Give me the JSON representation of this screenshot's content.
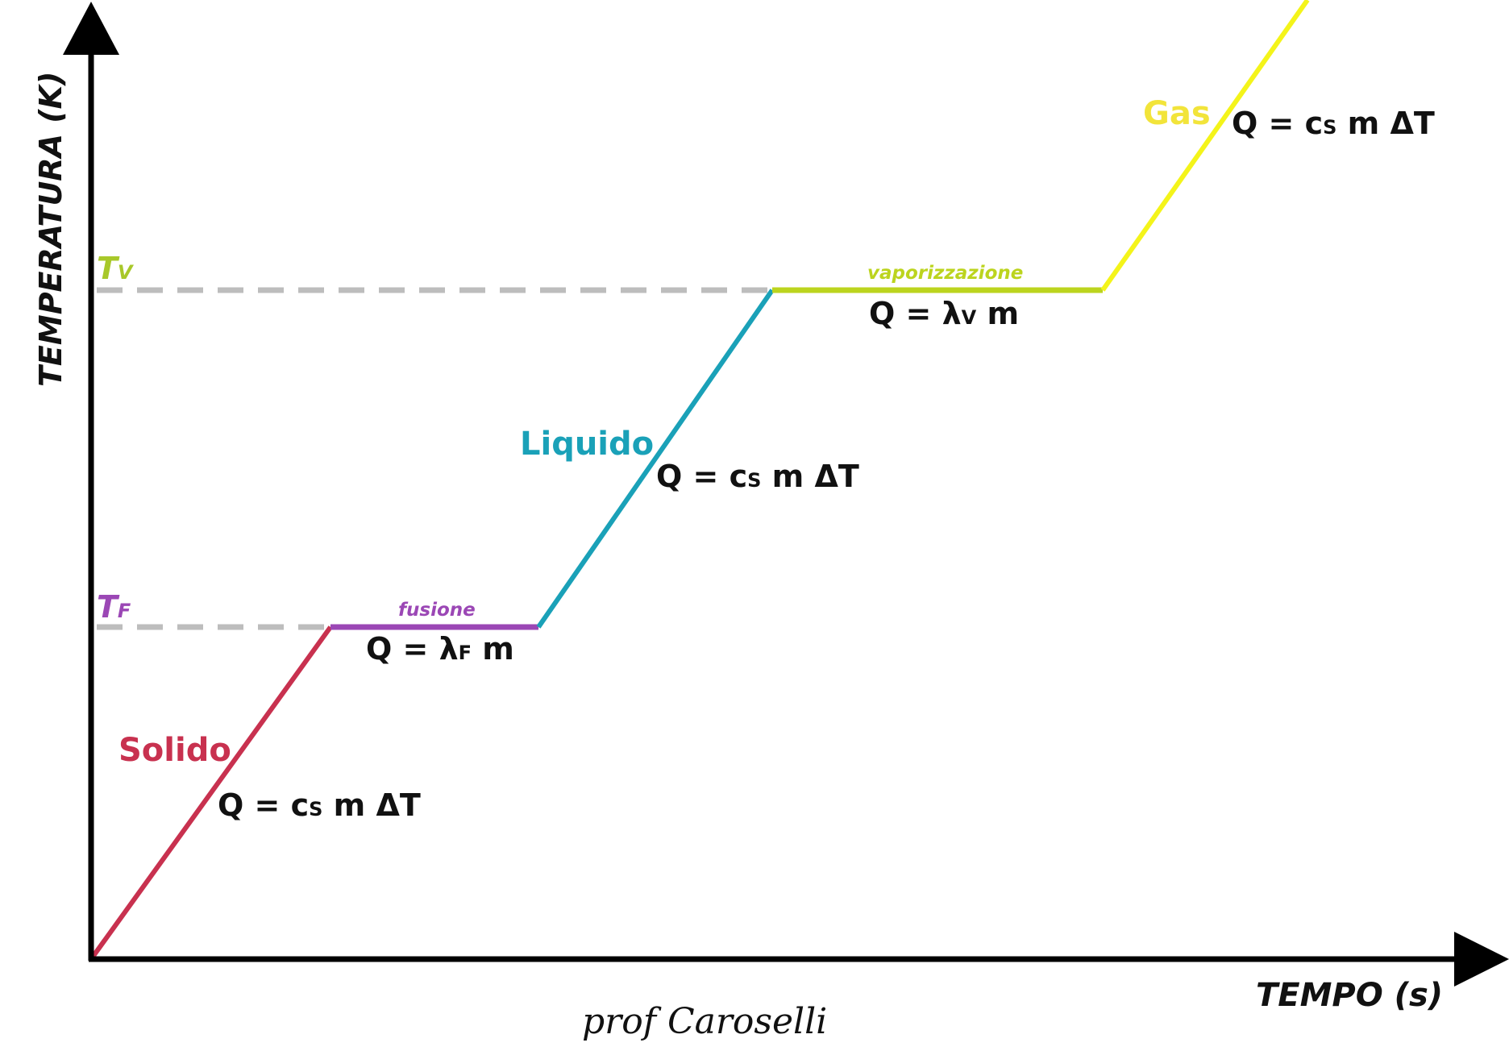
{
  "axes": {
    "y_label": "TEMPERATURA  (K)",
    "x_label": "TEMPO  (s)"
  },
  "levels": {
    "t_vap": {
      "T": "T",
      "sub": "V"
    },
    "t_fus": {
      "T": "T",
      "sub": "F"
    }
  },
  "phases": {
    "solid": {
      "name": "Solido",
      "color": "#c8314f"
    },
    "liquid": {
      "name": "Liquido",
      "color": "#1aa1b8"
    },
    "gas": {
      "name": "Gas",
      "color": "#f4f41a"
    }
  },
  "transitions": {
    "fusion": {
      "name": "fusione",
      "color": "#9b47b5"
    },
    "vaporization": {
      "name": "vaporizzazione",
      "color": "#bcd41e"
    }
  },
  "equations": {
    "solid": {
      "q": "Q = c",
      "sub": "S",
      "rest": " m  ΔT"
    },
    "fusion": {
      "q": "Q = λ",
      "sub": "F",
      "rest": " m"
    },
    "liquid": {
      "q": "Q = c",
      "sub": "S",
      "rest": " m  ΔT"
    },
    "vaporization": {
      "q": "Q = λ",
      "sub": "V",
      "rest": " m"
    },
    "gas": {
      "q": "Q = c",
      "sub": "S",
      "rest": " m  ΔT"
    }
  },
  "signature": "prof Caroselli",
  "colors": {
    "axis": "#000000",
    "dash": "#bdbdbd"
  }
}
